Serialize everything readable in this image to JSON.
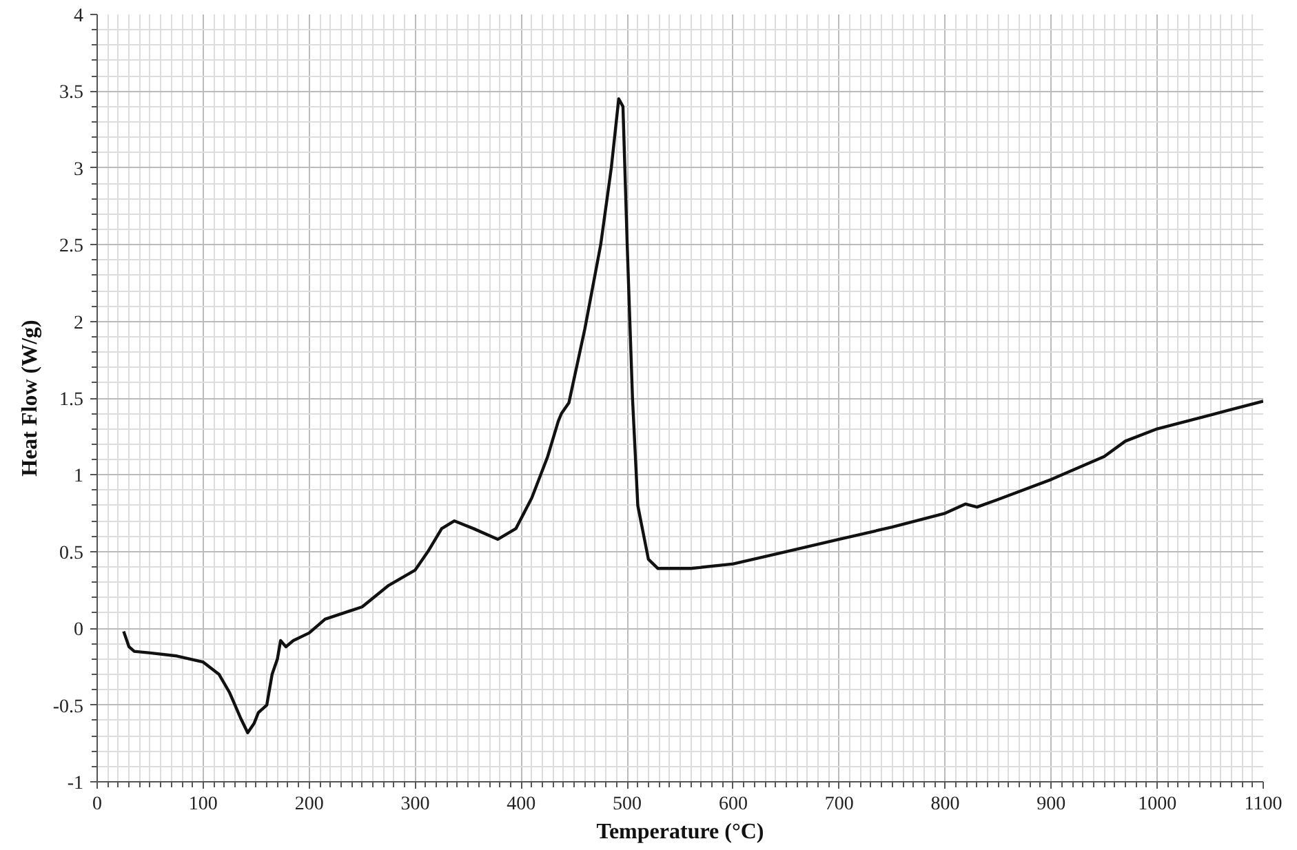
{
  "chart_data": {
    "type": "line",
    "xlabel": "Temperature (°C)",
    "ylabel": "Heat Flow (W/g)",
    "xlim": [
      0,
      1100
    ],
    "ylim": [
      -1,
      4
    ],
    "xticks": [
      0,
      100,
      200,
      300,
      400,
      500,
      600,
      700,
      800,
      900,
      1000,
      1100
    ],
    "yticks": [
      -1,
      -0.5,
      0,
      0.5,
      1,
      1.5,
      2,
      2.5,
      3,
      3.5,
      4
    ],
    "grid": true,
    "marker": "none",
    "line_style": "solid",
    "series": [
      {
        "color": "#111111",
        "x": [
          25,
          30,
          35,
          50,
          75,
          100,
          115,
          125,
          135,
          142,
          148,
          152,
          160,
          165,
          170,
          173,
          178,
          185,
          200,
          215,
          250,
          275,
          300,
          312,
          325,
          337,
          355,
          378,
          395,
          410,
          425,
          435,
          438,
          445,
          460,
          475,
          485,
          492,
          496,
          500,
          505,
          510,
          520,
          529,
          560,
          600,
          650,
          700,
          750,
          800,
          819,
          830,
          850,
          900,
          950,
          970,
          1000,
          1050,
          1100
        ],
        "values": [
          -0.02,
          -0.12,
          -0.15,
          -0.16,
          -0.18,
          -0.22,
          -0.3,
          -0.42,
          -0.58,
          -0.68,
          -0.62,
          -0.55,
          -0.5,
          -0.3,
          -0.2,
          -0.08,
          -0.12,
          -0.08,
          -0.03,
          0.06,
          0.14,
          0.28,
          0.38,
          0.5,
          0.65,
          0.7,
          0.65,
          0.58,
          0.65,
          0.85,
          1.12,
          1.35,
          1.4,
          1.47,
          1.95,
          2.5,
          3.0,
          3.45,
          3.4,
          2.5,
          1.5,
          0.8,
          0.45,
          0.39,
          0.39,
          0.42,
          0.5,
          0.58,
          0.66,
          0.75,
          0.81,
          0.79,
          0.84,
          0.97,
          1.12,
          1.22,
          1.3,
          1.39,
          1.48
        ]
      }
    ]
  }
}
